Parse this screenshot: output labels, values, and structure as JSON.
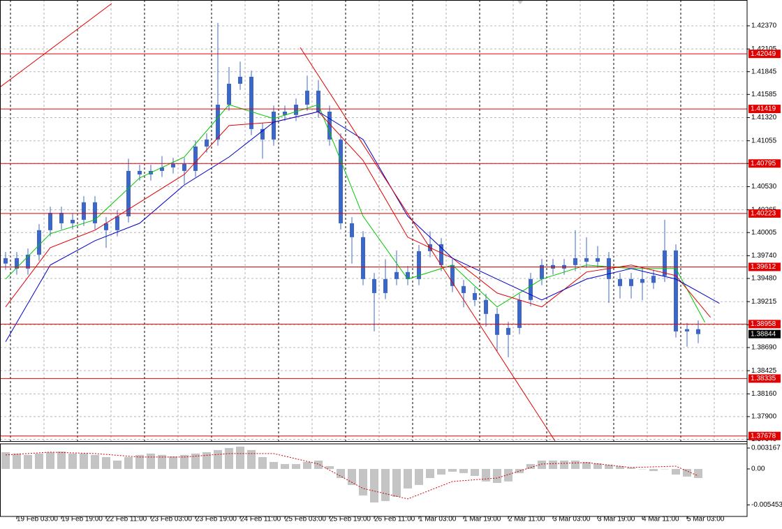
{
  "chart_data": [
    {
      "type": "candlestick",
      "categories": [
        null,
        "19 Feb 03:00",
        null,
        null,
        null,
        "19 Feb 19:00",
        null,
        null,
        null,
        "22 Feb 11:00",
        null,
        null,
        null,
        "23 Feb 03:00",
        null,
        null,
        null,
        "23 Feb 19:00",
        null,
        null,
        null,
        "24 Feb 11:00",
        null,
        null,
        null,
        "25 Feb 03:00",
        null,
        null,
        null,
        "25 Feb 19:00",
        null,
        null,
        null,
        "26 Feb 11:00",
        null,
        null,
        null,
        "1 Mar 03:00",
        null,
        null,
        null,
        "1 Mar 19:00",
        null,
        null,
        null,
        "2 Mar 11:00",
        null,
        null,
        null,
        "3 Mar 03:00",
        null,
        null,
        null,
        "3 Mar 19:00",
        null,
        null,
        null,
        "4 Mar 11:00",
        null,
        null,
        null,
        "5 Mar 03:00",
        null
      ],
      "open": [
        1.3965,
        1.39712,
        1.39593,
        1.39752,
        1.40032,
        1.40231,
        1.40111,
        1.40151,
        1.40351,
        1.40111,
        1.40032,
        1.40191,
        1.4071,
        1.4067,
        1.4071,
        1.4075,
        1.4079,
        1.4071,
        1.40989,
        1.41069,
        1.41468,
        1.41707,
        1.41787,
        1.41189,
        1.41069,
        1.41388,
        1.4135,
        1.41468,
        1.41628,
        1.41388,
        1.41069,
        1.40111,
        1.39952,
        1.39473,
        1.39313,
        1.39473,
        1.39553,
        1.39473,
        1.39792,
        1.39872,
        1.39633,
        1.39393,
        1.39313,
        1.39234,
        1.39074,
        1.38835,
        1.38914,
        1.39234,
        1.39473,
        1.39633,
        1.39593,
        1.39633,
        1.39712,
        1.39672,
        1.39712,
        1.39473,
        1.39393,
        1.39473,
        1.3943,
        1.3951,
        1.398,
        1.38874,
        1.389
      ],
      "high": [
        1.39782,
        1.39782,
        1.39822,
        1.40102,
        1.40301,
        1.40301,
        1.40221,
        1.40421,
        1.40421,
        1.40181,
        1.40261,
        1.4085,
        1.4078,
        1.4078,
        1.4088,
        1.4086,
        1.4086,
        1.41059,
        1.41139,
        1.42402,
        1.419,
        1.4196,
        1.41857,
        1.41259,
        1.41458,
        1.41458,
        1.41538,
        1.418,
        1.4175,
        1.41458,
        1.41139,
        1.40181,
        1.40022,
        1.39543,
        1.397,
        1.398,
        1.39623,
        1.39862,
        1.4002,
        1.39942,
        1.39703,
        1.39463,
        1.39383,
        1.39304,
        1.39144,
        1.38984,
        1.39304,
        1.39543,
        1.39703,
        1.39703,
        1.39703,
        1.40032,
        1.3995,
        1.3985,
        1.39782,
        1.39543,
        1.39543,
        1.396,
        1.3958,
        1.40151,
        1.3987,
        1.3897,
        1.39
      ],
      "low": [
        1.3958,
        1.39523,
        1.39523,
        1.39682,
        1.39962,
        1.40041,
        1.40041,
        1.40081,
        1.40041,
        1.3983,
        1.39962,
        1.40121,
        1.406,
        1.406,
        1.4064,
        1.4068,
        1.4056,
        1.4064,
        1.40919,
        1.40999,
        1.41398,
        1.41637,
        1.41119,
        1.4085,
        1.40999,
        1.4128,
        1.4128,
        1.41398,
        1.41318,
        1.40999,
        1.40041,
        1.3965,
        1.39403,
        1.38874,
        1.39243,
        1.39403,
        1.39403,
        1.39403,
        1.39722,
        1.39563,
        1.39323,
        1.3915,
        1.39164,
        1.3893,
        1.3865,
        1.38579,
        1.38844,
        1.39164,
        1.39403,
        1.39523,
        1.39523,
        1.39563,
        1.39602,
        1.39602,
        1.392,
        1.3925,
        1.3925,
        1.3923,
        1.3936,
        1.3944,
        1.38804,
        1.387,
        1.3874
      ],
      "close": [
        1.39712,
        1.39593,
        1.39752,
        1.40032,
        1.40231,
        1.40111,
        1.40151,
        1.40351,
        1.40111,
        1.40032,
        1.40191,
        1.4071,
        1.4067,
        1.4071,
        1.4075,
        1.4079,
        1.4071,
        1.40989,
        1.41069,
        1.41468,
        1.41707,
        1.41787,
        1.41189,
        1.41069,
        1.41388,
        1.4135,
        1.41468,
        1.41628,
        1.41388,
        1.41069,
        1.40111,
        1.39952,
        1.39473,
        1.39313,
        1.39473,
        1.39553,
        1.39473,
        1.39792,
        1.39872,
        1.39633,
        1.39393,
        1.39313,
        1.39234,
        1.39074,
        1.38835,
        1.38914,
        1.39234,
        1.39473,
        1.39633,
        1.39593,
        1.39633,
        1.39712,
        1.39672,
        1.39712,
        1.39473,
        1.39393,
        1.39473,
        1.3943,
        1.3951,
        1.398,
        1.38874,
        1.389,
        1.38844
      ],
      "color": "#3d66c9",
      "ylim": [
        1.3762,
        1.42665
      ],
      "yticks": [
        {
          "value": 1.4237,
          "label": "1.42370"
        },
        1.42105,
        1.41845,
        1.41585,
        {
          "value": 1.4132,
          "label": "1.41320"
        },
        1.41055,
        1.40795,
        {
          "value": 1.4053,
          "label": "1.40530"
        },
        1.40265,
        1.40005,
        {
          "value": 1.3974,
          "label": "1.39740"
        },
        {
          "value": 1.3948,
          "label": "1.39480"
        },
        1.39215,
        {
          "value": 1.3895,
          "label": "1.38950"
        },
        {
          "value": 1.3869,
          "label": "1.38690"
        },
        1.38425,
        {
          "value": 1.3816,
          "label": "1.38160"
        },
        {
          "value": 1.379,
          "label": "1.37900"
        },
        {
          "value": 1.3764,
          "label": "1.37640"
        }
      ],
      "grid": true,
      "lines": [
        {
          "color": "#00c800",
          "x": [
            0,
            4,
            8,
            12,
            16,
            20,
            24,
            28,
            32,
            36,
            40,
            44,
            48,
            52,
            56,
            60,
            62.6
          ],
          "values": [
            1.39473,
            1.39992,
            1.40151,
            1.4063,
            1.40869,
            1.41468,
            1.41308,
            1.41468,
            1.40191,
            1.39473,
            1.39633,
            1.39154,
            1.39473,
            1.39633,
            1.39593,
            1.39593,
            1.38978
          ]
        },
        {
          "color": "#e00000",
          "x": [
            0,
            4,
            8,
            12,
            16,
            20,
            24,
            28,
            32,
            36,
            40,
            44,
            48,
            52,
            56,
            60,
            63.1
          ],
          "values": [
            1.39154,
            1.39832,
            1.40032,
            1.40351,
            1.4067,
            1.41229,
            1.41268,
            1.41388,
            1.4083,
            1.39952,
            1.39712,
            1.39313,
            1.39154,
            1.39553,
            1.39633,
            1.39513,
            1.39035
          ]
        },
        {
          "color": "#0000c8",
          "x": [
            0,
            4,
            8,
            12,
            16,
            20,
            24,
            28,
            32,
            36,
            40,
            44,
            48,
            52,
            56,
            60,
            63.9
          ],
          "values": [
            1.38755,
            1.39633,
            1.39912,
            1.40111,
            1.4055,
            1.40869,
            1.41268,
            1.41388,
            1.41069,
            1.40191,
            1.39712,
            1.39473,
            1.39234,
            1.39473,
            1.39593,
            1.39473,
            1.39195
          ]
        }
      ],
      "trend_lines": [
        {
          "color": "#e00000",
          "x": [
            -0.5,
            9.5
          ],
          "values": [
            1.41668,
            1.42625
          ]
        },
        {
          "color": "#e00000",
          "x": [
            26.375,
            49.19
          ],
          "values": [
            1.42122,
            1.3762
          ]
        }
      ],
      "levels": {
        "color": "#e00000",
        "values": [
          1.42049,
          1.41419,
          1.40795,
          1.40223,
          1.39612,
          1.38958,
          1.38335,
          1.37678
        ]
      },
      "last_price": 1.38844
    },
    {
      "type": "oscillator",
      "values": [
        0.00254,
        0.00233,
        0.00212,
        0.00233,
        0.00254,
        0.00264,
        0.00233,
        0.00233,
        0.00212,
        0.0018,
        0.00127,
        0.0018,
        0.00212,
        0.00233,
        0.00212,
        0.0019,
        0.00212,
        0.00233,
        0.00254,
        0.00286,
        0.00317,
        0.00339,
        0.00286,
        0.0018,
        0.00106,
        0.00074,
        0.00074,
        0.00106,
        0.00127,
        0.00042,
        -0.00138,
        -0.00243,
        -0.00402,
        -0.00508,
        -0.00487,
        -0.00423,
        -0.00296,
        -0.00243,
        -0.00138,
        -0.00085,
        -0.00042,
        -0.00063,
        -0.00106,
        -0.0019,
        -0.00212,
        -0.0019,
        -0.00063,
        0.00074,
        0.00127,
        0.00127,
        0.00127,
        0.00127,
        0.00106,
        0.00085,
        0.00063,
        0.00042,
        0.00021,
        0,
        -0.00032,
        0,
        -0.00085,
        -0.00116,
        -0.00138
      ],
      "color": "#c4c4c4",
      "signal": {
        "color": "#d00000",
        "x": [
          0,
          4,
          8,
          12,
          16,
          20,
          24,
          28,
          32,
          36,
          40,
          44,
          48,
          52,
          56,
          60,
          62
        ],
        "values": [
          0.00212,
          0.00254,
          0.00233,
          0.0018,
          0.0018,
          0.00233,
          0.00233,
          0.00074,
          -0.00296,
          -0.00455,
          -0.0019,
          -0.00138,
          0.00074,
          0.00095,
          0.00021,
          0.00042,
          -0.00106
        ]
      },
      "ylim": [
        -0.0072,
        0.0038
      ],
      "yticks": [
        0.003167,
        {
          "value": 0,
          "label": "0.00"
        },
        -0.005453
      ]
    }
  ]
}
